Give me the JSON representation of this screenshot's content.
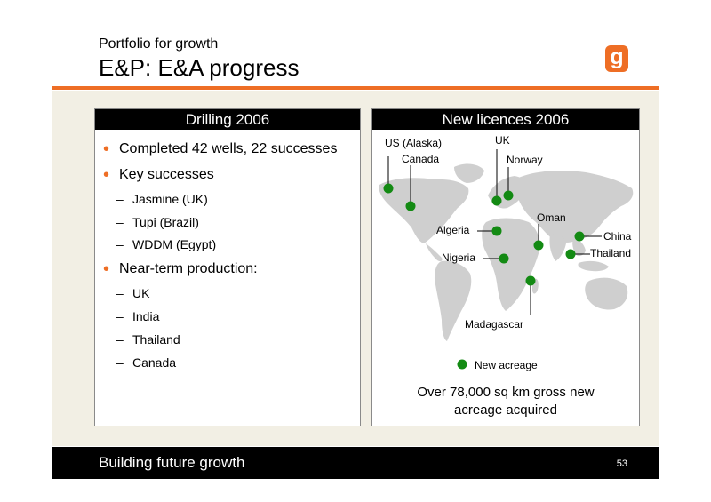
{
  "header": {
    "subtitle": "Portfolio for growth",
    "title": "E&P: E&A progress",
    "logo_letter": "g",
    "accent_color": "#ee6e25"
  },
  "drilling": {
    "heading": "Drilling 2006",
    "bullets": [
      {
        "text": "Completed 42 wells, 22 successes"
      },
      {
        "text": "Key successes",
        "subs": [
          "Jasmine (UK)",
          "Tupi (Brazil)",
          "WDDM (Egypt)"
        ]
      },
      {
        "text": "Near-term production:",
        "subs": [
          "UK",
          "India",
          "Thailand",
          "Canada"
        ]
      }
    ]
  },
  "licences": {
    "heading": "New licences 2006",
    "map_labels": [
      "US (Alaska)",
      "Canada",
      "UK",
      "Norway",
      "Oman",
      "Algeria",
      "China",
      "Nigeria",
      "Thailand",
      "Madagascar"
    ],
    "legend": "New acreage",
    "marker_color": "#138a13",
    "caption_line1": "Over 78,000 sq km gross new",
    "caption_line2": "acreage acquired"
  },
  "footer": {
    "text": "Building future growth",
    "page_number": "53"
  }
}
